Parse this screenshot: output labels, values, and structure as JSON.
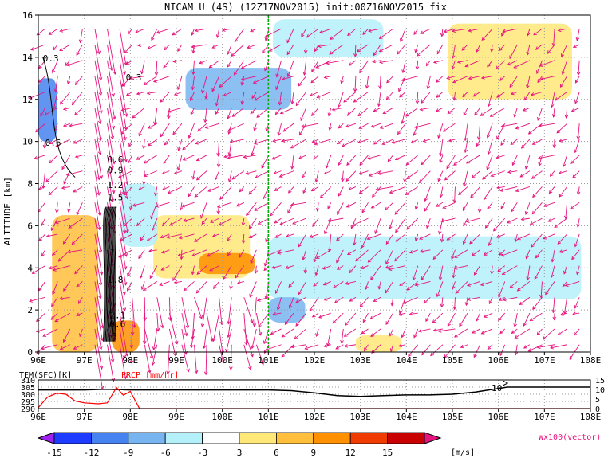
{
  "chart_data": [
    {
      "type": "heatmap",
      "title": "NICAM U (4S) (12Z17NOV2015) init:00Z16NOV2015 fix",
      "ylabel": "ALTITUDE [km]",
      "xlabel": "",
      "x_ticks": [
        "96E",
        "97E",
        "98E",
        "99E",
        "100E",
        "101E",
        "102E",
        "103E",
        "104E",
        "105E",
        "106E",
        "107E",
        "108E"
      ],
      "y_ticks": [
        "0",
        "2",
        "4",
        "6",
        "8",
        "10",
        "12",
        "14",
        "16"
      ],
      "xlim": [
        96,
        108
      ],
      "ylim": [
        0,
        16
      ],
      "grid": true,
      "reference_line_x": 101,
      "contour_labels": [
        "0.3",
        "0.6",
        "0.6",
        "0.9",
        "1.2",
        "1.5",
        "0.3",
        "1.8",
        "0.6",
        "3",
        "2.1"
      ],
      "shaded_regions": [
        {
          "x": [
            96.3,
            97.3
          ],
          "y": [
            0,
            6.5
          ],
          "value": 6
        },
        {
          "x": [
            97.6,
            98.2
          ],
          "y": [
            0,
            1.5
          ],
          "value": 9
        },
        {
          "x": [
            98.5,
            100.6
          ],
          "y": [
            3.5,
            6.5
          ],
          "value": 3
        },
        {
          "x": [
            99.5,
            100.7
          ],
          "y": [
            3.7,
            4.7
          ],
          "value": 9
        },
        {
          "x": [
            102.9,
            103.9
          ],
          "y": [
            0,
            0.8
          ],
          "value": 3
        },
        {
          "x": [
            101.1,
            103.5
          ],
          "y": [
            14.0,
            15.8
          ],
          "value": -6
        },
        {
          "x": [
            104.9,
            107.6
          ],
          "y": [
            12.0,
            15.6
          ],
          "value": 3
        },
        {
          "x": [
            96.0,
            96.4
          ],
          "y": [
            10.0,
            13.0
          ],
          "value": -12
        },
        {
          "x": [
            101.0,
            107.8
          ],
          "y": [
            2.5,
            5.5
          ],
          "value": -6
        },
        {
          "x": [
            101.0,
            101.8
          ],
          "y": [
            1.4,
            2.6
          ],
          "value": -9
        },
        {
          "x": [
            99.2,
            101.5
          ],
          "y": [
            11.5,
            13.5
          ],
          "value": -9
        },
        {
          "x": [
            97.8,
            98.6
          ],
          "y": [
            5.0,
            8.0
          ],
          "value": -6
        }
      ]
    },
    {
      "type": "line",
      "title": "",
      "y_left_label": "TEM(SFC)[K]",
      "y_right_label": "PRCP [mm/hr]",
      "x_ticks": [
        "96E",
        "97E",
        "98E",
        "99E",
        "100E",
        "101E",
        "102E",
        "103E",
        "104E",
        "105E",
        "106E",
        "107E",
        "108E"
      ],
      "y_left_ticks": [
        "290",
        "295",
        "300",
        "305",
        "310"
      ],
      "y_right_ticks": [
        "0",
        "5",
        "10",
        "15"
      ],
      "y_left_lim": [
        290,
        310
      ],
      "y_right_lim": [
        0,
        15
      ],
      "x": [
        96,
        96.5,
        97,
        97.5,
        98,
        99,
        100,
        101,
        101.5,
        102,
        102.5,
        103,
        103.5,
        104,
        104.5,
        105,
        105.5,
        106,
        106.2,
        107,
        108
      ],
      "series": [
        {
          "name": "TEM(SFC)[K]",
          "axis": "left",
          "color": "#000000",
          "values": [
            303,
            303,
            303,
            303.5,
            303,
            303,
            303,
            303,
            302.5,
            301,
            299,
            298.5,
            299,
            299.5,
            299.5,
            300,
            301.5,
            304,
            305,
            305,
            305
          ]
        },
        {
          "name": "PRCP [mm/hr]",
          "axis": "right",
          "color": "#ff0000",
          "points": [
            [
              96,
              0.5
            ],
            [
              96.2,
              6
            ],
            [
              96.4,
              8
            ],
            [
              96.6,
              7.5
            ],
            [
              96.8,
              4
            ],
            [
              97.0,
              3
            ],
            [
              97.3,
              2.5
            ],
            [
              97.5,
              3
            ],
            [
              97.7,
              11
            ],
            [
              97.85,
              7
            ],
            [
              98,
              9
            ],
            [
              98.2,
              0
            ],
            [
              108,
              0
            ]
          ]
        }
      ],
      "annotations": [
        "10"
      ]
    }
  ],
  "colorbar": {
    "ticks": [
      "-15",
      "-12",
      "-9",
      "-6",
      "-3",
      "3",
      "6",
      "9",
      "12",
      "15"
    ],
    "unit": "[m/s]",
    "colors": [
      "#a020f0",
      "#1e3cff",
      "#4682f0",
      "#78b4f0",
      "#b4f0fa",
      "#ffffff",
      "#ffe878",
      "#ffbe3c",
      "#ff9000",
      "#f03c00",
      "#c80000",
      "#e6147e"
    ]
  },
  "vector_label": "Wx100(vector)",
  "colors": {
    "vector": "#e6147e",
    "ref_line": "#00b000",
    "temp_line": "#000000",
    "prcp_line": "#ff0000",
    "frame": "#000000"
  }
}
